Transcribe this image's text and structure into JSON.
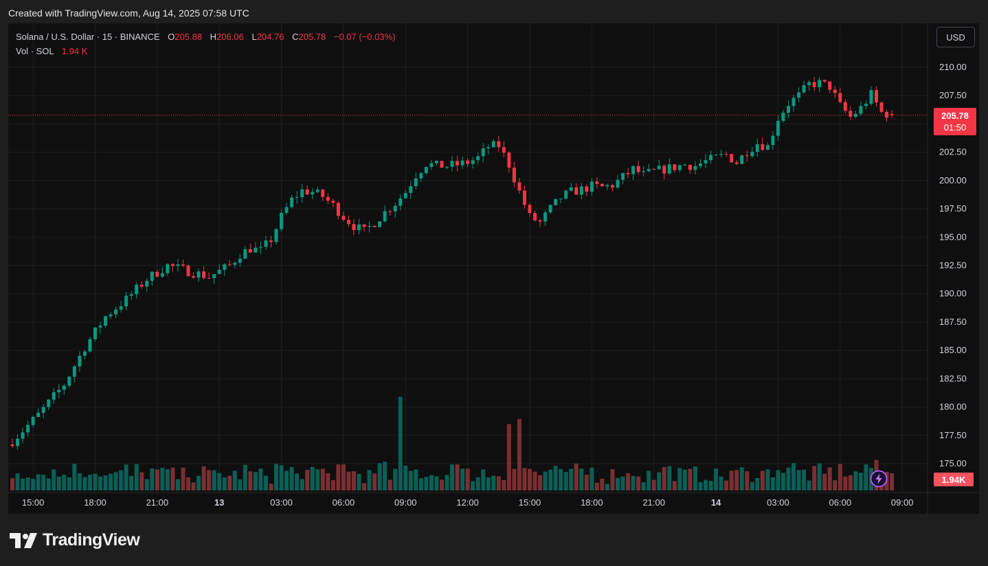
{
  "header": {
    "created_text": "Created with TradingView.com, Aug 14, 2025 07:58 UTC"
  },
  "legend": {
    "symbol": "Solana / U.S. Dollar · 15 · BINANCE",
    "open_label": "O",
    "open_value": "205.88",
    "high_label": "H",
    "high_value": "206.06",
    "low_label": "L",
    "low_value": "204.76",
    "close_label": "C",
    "close_value": "205.78",
    "change": "−0.07 (−0.03%)",
    "vol_label": "Vol · SOL",
    "vol_value": "1.94 K"
  },
  "currency_button": "USD",
  "last_price": {
    "price": "205.78",
    "countdown": "01:50"
  },
  "volume_label": "1.94K",
  "logo_text": "TradingView",
  "icons": {
    "bolt": "lightning-bolt-icon",
    "logo": "tradingview-logo-icon"
  },
  "colors": {
    "up": "#089981",
    "down": "#f23645",
    "vol_up": "#0b5f55",
    "vol_down": "#7a2f33",
    "background": "#0f0f0f"
  },
  "chart_data": {
    "type": "candlestick",
    "interval": "15",
    "y_ticks": [
      "210.00",
      "207.50",
      "205.00",
      "202.50",
      "200.00",
      "197.50",
      "195.00",
      "192.50",
      "190.00",
      "187.50",
      "185.00",
      "182.50",
      "180.00",
      "177.50",
      "175.00"
    ],
    "y_range": [
      173.8,
      212.0
    ],
    "x_ticks": [
      {
        "label": "15:00",
        "index": 4
      },
      {
        "label": "18:00",
        "index": 16
      },
      {
        "label": "21:00",
        "index": 28
      },
      {
        "label": "13",
        "index": 40
      },
      {
        "label": "03:00",
        "index": 52
      },
      {
        "label": "06:00",
        "index": 64
      },
      {
        "label": "09:00",
        "index": 76
      },
      {
        "label": "12:00",
        "index": 88
      },
      {
        "label": "15:00",
        "index": 100
      },
      {
        "label": "18:00",
        "index": 112
      },
      {
        "label": "21:00",
        "index": 124
      },
      {
        "label": "14",
        "index": 136
      },
      {
        "label": "03:00",
        "index": 148
      },
      {
        "label": "06:00",
        "index": 160
      },
      {
        "label": "09:00",
        "index": 172
      }
    ],
    "waypoints": [
      [
        0,
        177.0
      ],
      [
        5,
        179.3
      ],
      [
        10,
        182.0
      ],
      [
        14,
        185.3
      ],
      [
        18,
        188.0
      ],
      [
        22,
        189.5
      ],
      [
        26,
        191.3
      ],
      [
        30,
        192.5
      ],
      [
        34,
        192.0
      ],
      [
        38,
        191.5
      ],
      [
        42,
        192.5
      ],
      [
        44,
        193.5
      ],
      [
        46,
        194.0
      ],
      [
        48,
        193.8
      ],
      [
        50,
        194.8
      ],
      [
        52,
        196.8
      ],
      [
        54,
        198.3
      ],
      [
        56,
        199.1
      ],
      [
        58,
        199.0
      ],
      [
        60,
        198.6
      ],
      [
        62,
        197.8
      ],
      [
        64,
        196.8
      ],
      [
        66,
        196.0
      ],
      [
        68,
        195.5
      ],
      [
        70,
        196.3
      ],
      [
        72,
        197.2
      ],
      [
        74,
        198.0
      ],
      [
        76,
        199.0
      ],
      [
        78,
        200.5
      ],
      [
        80,
        201.5
      ],
      [
        82,
        201.3
      ],
      [
        84,
        201.3
      ],
      [
        86,
        201.4
      ],
      [
        88,
        201.6
      ],
      [
        90,
        202.0
      ],
      [
        92,
        203.0
      ],
      [
        94,
        203.1
      ],
      [
        96,
        201.4
      ],
      [
        98,
        199.0
      ],
      [
        100,
        196.8
      ],
      [
        102,
        196.3
      ],
      [
        104,
        197.5
      ],
      [
        106,
        198.5
      ],
      [
        108,
        199.0
      ],
      [
        110,
        199.2
      ],
      [
        112,
        199.5
      ],
      [
        114,
        199.4
      ],
      [
        116,
        199.6
      ],
      [
        118,
        200.3
      ],
      [
        120,
        201.0
      ],
      [
        122,
        200.5
      ],
      [
        124,
        200.8
      ],
      [
        126,
        201.0
      ],
      [
        128,
        201.2
      ],
      [
        130,
        201.4
      ],
      [
        132,
        201.3
      ],
      [
        134,
        201.7
      ],
      [
        136,
        202.0
      ],
      [
        138,
        202.3
      ],
      [
        140,
        201.6
      ],
      [
        142,
        202.6
      ],
      [
        144,
        203.3
      ],
      [
        146,
        203.0
      ],
      [
        148,
        205.5
      ],
      [
        150,
        206.8
      ],
      [
        152,
        207.5
      ],
      [
        154,
        208.5
      ],
      [
        156,
        208.6
      ],
      [
        158,
        208.3
      ],
      [
        160,
        206.6
      ],
      [
        162,
        205.6
      ],
      [
        164,
        206.4
      ],
      [
        166,
        207.6
      ],
      [
        168,
        206.0
      ],
      [
        170,
        205.78
      ]
    ],
    "volume_spikes": {
      "75": 7.2,
      "96": 5.1,
      "98": 5.5,
      "71": 2.1,
      "85": 2.0,
      "86": 2.0,
      "63": 2.0,
      "64": 2.0,
      "126": 1.8,
      "151": 2.1,
      "165": 2.0
    },
    "volume_axis_max": 9.5
  }
}
